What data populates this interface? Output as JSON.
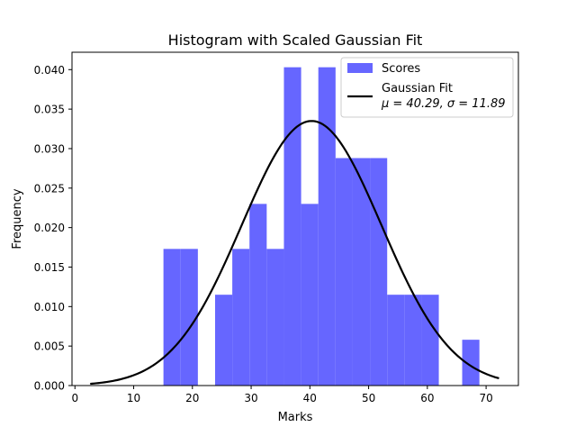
{
  "chart_data": {
    "type": "bar",
    "title": "Histogram with Scaled Gaussian Fit",
    "xlabel": "Marks",
    "ylabel": "Frequency",
    "xlim": [
      -0.5,
      75.5
    ],
    "ylim": [
      0,
      0.0422
    ],
    "xticks": [
      0,
      10,
      20,
      30,
      40,
      50,
      60,
      70
    ],
    "yticks": [
      0.0,
      0.005,
      0.01,
      0.015,
      0.02,
      0.025,
      0.03,
      0.035,
      0.04
    ],
    "ytick_labels": [
      "0.000",
      "0.005",
      "0.010",
      "0.015",
      "0.020",
      "0.025",
      "0.030",
      "0.035",
      "0.040"
    ],
    "bin_width": 2.93,
    "bins": [
      {
        "start": 15.07,
        "value": 0.0173
      },
      {
        "start": 18.0,
        "value": 0.0173
      },
      {
        "start": 23.86,
        "value": 0.0115
      },
      {
        "start": 26.79,
        "value": 0.0173
      },
      {
        "start": 29.72,
        "value": 0.023
      },
      {
        "start": 32.65,
        "value": 0.0173
      },
      {
        "start": 35.58,
        "value": 0.0403
      },
      {
        "start": 38.51,
        "value": 0.023
      },
      {
        "start": 41.44,
        "value": 0.0403
      },
      {
        "start": 44.37,
        "value": 0.0288
      },
      {
        "start": 47.3,
        "value": 0.0288
      },
      {
        "start": 50.23,
        "value": 0.0288
      },
      {
        "start": 53.16,
        "value": 0.0115
      },
      {
        "start": 56.09,
        "value": 0.0115
      },
      {
        "start": 59.02,
        "value": 0.0115
      },
      {
        "start": 65.93,
        "value": 0.0058
      }
    ],
    "fit": {
      "mu": 40.29,
      "sigma": 11.89,
      "x_range": [
        2.6,
        72.2
      ],
      "peak": 0.0335
    },
    "colors": {
      "bars": "#6666ff",
      "curve": "#000000"
    },
    "legend": {
      "position": "top-right",
      "histogram_label": "Scores",
      "fit_label": "Gaussian Fit",
      "fit_params_label": "μ = 40.29, σ = 11.89"
    }
  }
}
